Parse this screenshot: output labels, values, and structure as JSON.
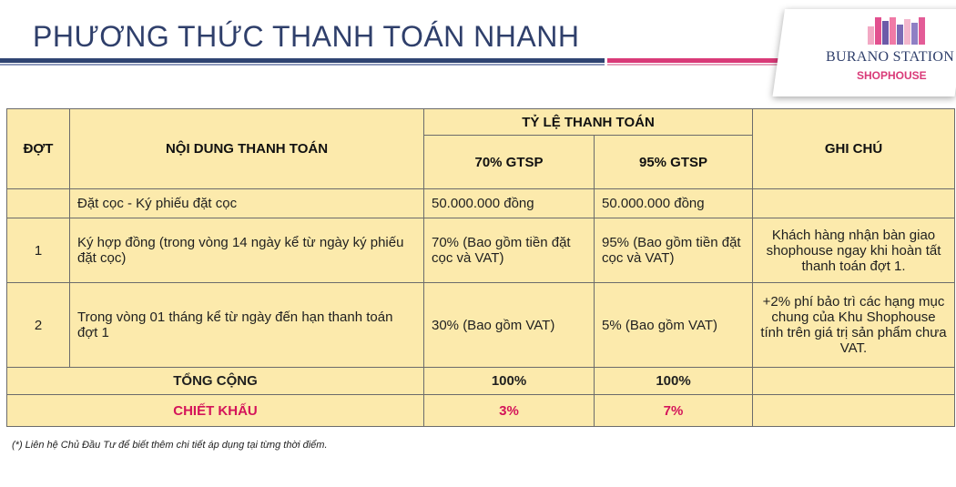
{
  "page": {
    "title": "PHƯƠNG THỨC THANH TOÁN NHANH",
    "footnote": "(*) Liên hệ Chủ Đầu Tư để biết thêm chi tiết áp dụng tại từng thời điểm."
  },
  "logo": {
    "name": "BURANO STATION",
    "sub": "SHOPHOUSE",
    "bar_colors": [
      "#f2a9c4",
      "#e2508f",
      "#6c5aa8",
      "#f07aa6",
      "#7b6bb5",
      "#f3b7cd",
      "#8f7fc4",
      "#e35c97"
    ]
  },
  "table": {
    "headers": {
      "dot": "ĐỢT",
      "content": "NỘI DUNG THANH TOÁN",
      "ratio": "TỶ LỆ THANH TOÁN",
      "option1": "70% GTSP",
      "option2": "95% GTSP",
      "note": "GHI CHÚ"
    },
    "rows": [
      {
        "dot": "",
        "content": "Đặt cọc - Ký phiếu đặt cọc",
        "v1": "50.000.000 đồng",
        "v2": "50.000.000 đồng",
        "note": ""
      },
      {
        "dot": "1",
        "content": "Ký hợp đồng (trong vòng 14 ngày kể từ ngày ký phiếu đặt cọc)",
        "v1": "70% (Bao gồm tiền đặt cọc và VAT)",
        "v2": "95% (Bao gồm tiền đặt cọc và VAT)",
        "note": "Khách hàng nhận bàn giao shophouse ngay khi hoàn tất thanh toán đợt 1."
      },
      {
        "dot": "2",
        "content": "Trong vòng 01 tháng kể từ ngày đến hạn thanh toán đợt 1",
        "v1": "30% (Bao gồm VAT)",
        "v2": "5% (Bao gồm VAT)",
        "note": "+2% phí bảo trì các hạng mục chung của Khu Shophouse tính trên giá trị sản phẩm chưa VAT."
      }
    ],
    "total": {
      "label": "TỔNG CỘNG",
      "v1": "100%",
      "v2": "100%"
    },
    "discount": {
      "label": "CHIẾT KHẤU",
      "v1": "3%",
      "v2": "7%"
    }
  }
}
